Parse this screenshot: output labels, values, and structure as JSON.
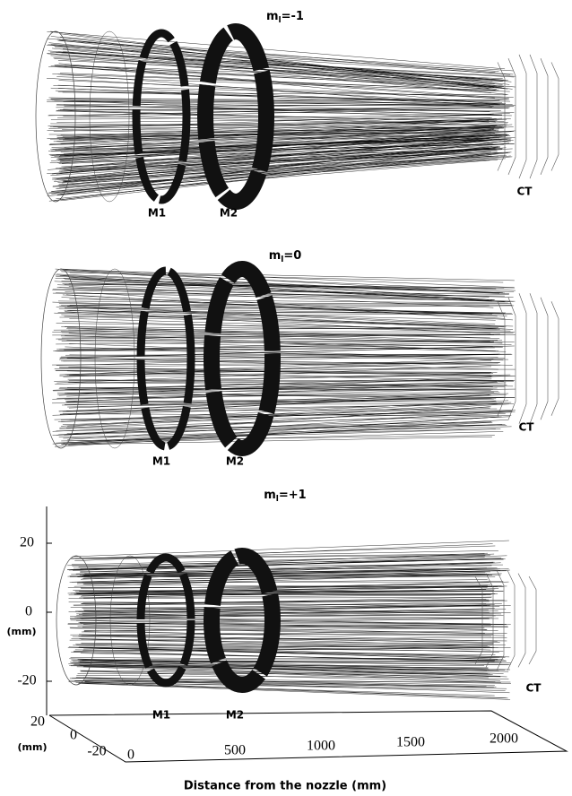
{
  "panels": [
    {
      "title": {
        "symbol": "m",
        "subscript": "l",
        "value": "=-1"
      },
      "labels": [
        "M1",
        "M2",
        "CT"
      ]
    },
    {
      "title": {
        "symbol": "m",
        "subscript": "l",
        "value": "=0"
      },
      "labels": [
        "M1",
        "M2",
        "CT"
      ]
    },
    {
      "title": {
        "symbol": "m",
        "subscript": "l",
        "value": "=+1"
      },
      "labels": [
        "M1",
        "M2",
        "CT"
      ]
    }
  ],
  "axes": {
    "vertical_ticks": [
      20,
      0,
      -20
    ],
    "vertical_label": "(mm)",
    "depth_ticks": [
      20,
      0,
      -20
    ],
    "depth_label": "(mm)",
    "x_ticks": [
      0,
      500,
      1000,
      1500,
      2000
    ],
    "x_label": "Distance from the nozzle (mm)"
  }
}
